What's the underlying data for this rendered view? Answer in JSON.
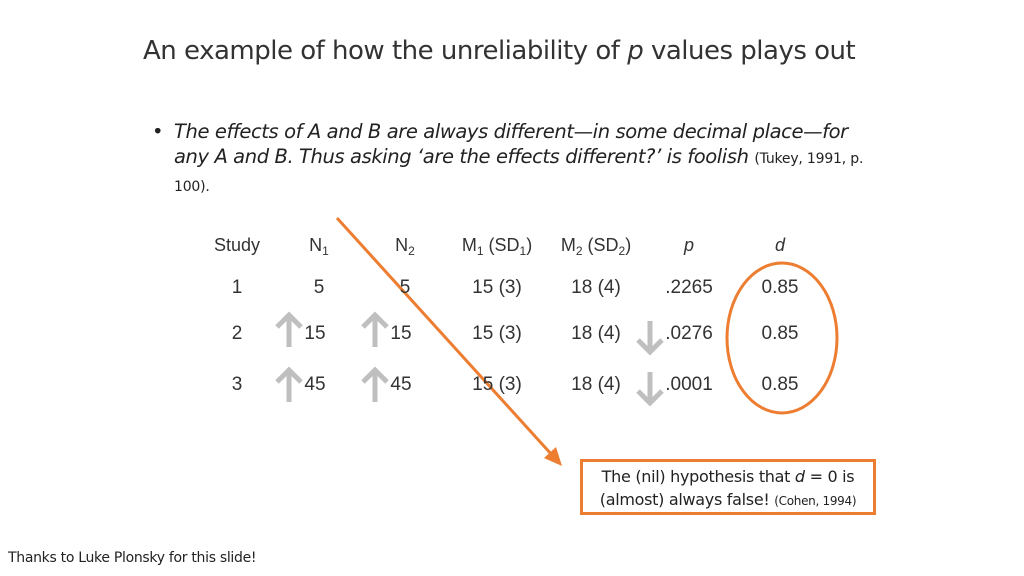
{
  "slide": {
    "title_pre": "An example of how the unreliability of ",
    "title_em": "p",
    "title_post": " values plays out",
    "bullet_symbol": "•",
    "bullet_quote": "The effects of A and B are always different—in some decimal place—for any A and B. Thus asking ‘are the effects different?’ is foolish",
    "bullet_cite": "(Tukey, 1991, p. 100).",
    "footer": "Thanks to Luke Plonsky for this slide!"
  },
  "table": {
    "headers": {
      "study": "Study",
      "n1_main": "N",
      "n1_sub": "1",
      "n2_main": "N",
      "n2_sub": "2",
      "m1_a": "M",
      "m1_a_sub": "1",
      "m1_b": " (SD",
      "m1_b_sub": "1",
      "m1_c": ")",
      "m2_a": "M",
      "m2_a_sub": "2",
      "m2_b": " (SD",
      "m2_b_sub": "2",
      "m2_c": ")",
      "p": "p",
      "d": "d"
    },
    "rows": [
      {
        "study": "1",
        "n1": "5",
        "n2": "5",
        "m1": "15 (3)",
        "m2": "18 (4)",
        "p": ".2265",
        "d": "0.85"
      },
      {
        "study": "2",
        "n1": "15",
        "n2": "15",
        "m1": "15 (3)",
        "m2": "18 (4)",
        "p": ".0276",
        "d": "0.85"
      },
      {
        "study": "3",
        "n1": "45",
        "n2": "45",
        "m1": "15 (3)",
        "m2": "18 (4)",
        "p": ".0001",
        "d": "0.85"
      }
    ]
  },
  "callout": {
    "line1_pre": "The (nil) hypothesis that ",
    "line1_em": "d",
    "line1_post": " = 0 is",
    "line2": "(almost) always false!",
    "cite": "(Cohen, 1994)"
  },
  "icons": {
    "increase": "arrow-up-icon",
    "decrease": "arrow-down-icon"
  },
  "colors": {
    "accent": "#ED7D31",
    "arrow_gray": "#BFBFBF",
    "text": "#333333"
  }
}
